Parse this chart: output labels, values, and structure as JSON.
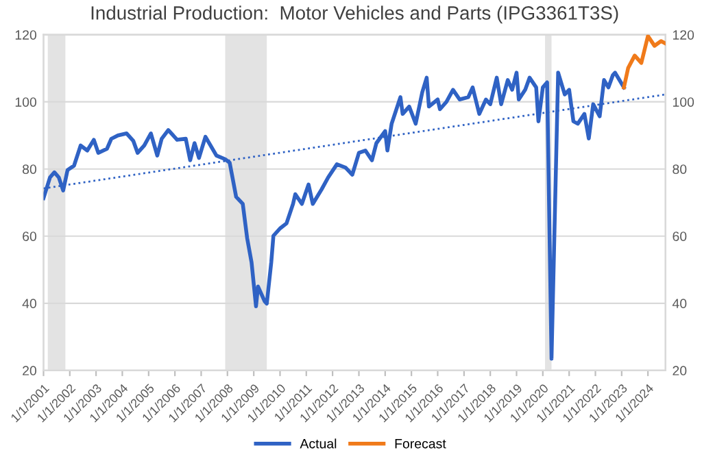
{
  "chart_data": {
    "type": "line",
    "title": "Industrial Production:  Motor Vehicles and Parts (IPG3361T3S)",
    "xlim": [
      "2001-01",
      "2024-09"
    ],
    "xticks": [
      {
        "value": "2001-01-01",
        "label": "1/1/2001"
      },
      {
        "value": "2002-01-01",
        "label": "1/1/2002"
      },
      {
        "value": "2003-01-01",
        "label": "1/1/2003"
      },
      {
        "value": "2004-01-01",
        "label": "1/1/2004"
      },
      {
        "value": "2005-01-01",
        "label": "1/1/2005"
      },
      {
        "value": "2006-01-01",
        "label": "1/1/2006"
      },
      {
        "value": "2007-01-01",
        "label": "1/1/2007"
      },
      {
        "value": "2008-01-01",
        "label": "1/1/2008"
      },
      {
        "value": "2009-01-01",
        "label": "1/1/2009"
      },
      {
        "value": "2010-01-01",
        "label": "1/1/2010"
      },
      {
        "value": "2011-01-01",
        "label": "1/1/2011"
      },
      {
        "value": "2012-01-01",
        "label": "1/1/2012"
      },
      {
        "value": "2013-01-01",
        "label": "1/1/2013"
      },
      {
        "value": "2014-01-01",
        "label": "1/1/2014"
      },
      {
        "value": "2015-01-01",
        "label": "1/1/2015"
      },
      {
        "value": "2016-01-01",
        "label": "1/1/2016"
      },
      {
        "value": "2017-01-01",
        "label": "1/1/2017"
      },
      {
        "value": "2018-01-01",
        "label": "1/1/2018"
      },
      {
        "value": "2019-01-01",
        "label": "1/1/2019"
      },
      {
        "value": "2020-01-01",
        "label": "1/1/2020"
      },
      {
        "value": "2021-01-01",
        "label": "1/1/2021"
      },
      {
        "value": "2022-01-01",
        "label": "1/1/2022"
      },
      {
        "value": "2023-01-01",
        "label": "1/1/2023"
      },
      {
        "value": "2024-01-01",
        "label": "1/1/2024"
      }
    ],
    "ylim": [
      20,
      120
    ],
    "yticks": [
      20,
      40,
      60,
      80,
      100,
      120
    ],
    "y2lim": [
      20,
      120
    ],
    "y2ticks": [
      20,
      40,
      60,
      80,
      100,
      120
    ],
    "grid": "y",
    "legend": "bottom",
    "bands": [
      {
        "axis": "x",
        "from": "2001-03",
        "to": "2001-11",
        "color": "#e3e3e3"
      },
      {
        "axis": "x",
        "from": "2007-12",
        "to": "2009-07",
        "color": "#e3e3e3"
      },
      {
        "axis": "x",
        "from": "2020-02",
        "to": "2020-05",
        "color": "#e3e3e3"
      }
    ],
    "series": [
      {
        "name": "Actual",
        "color": "#2f62c4",
        "x": [
          "2001-01",
          "2001-04",
          "2001-06",
          "2001-08",
          "2001-10",
          "2001-12",
          "2002-03",
          "2002-06",
          "2002-09",
          "2002-12",
          "2003-02",
          "2003-06",
          "2003-08",
          "2003-11",
          "2004-03",
          "2004-06",
          "2004-08",
          "2004-11",
          "2005-02",
          "2005-05",
          "2005-07",
          "2005-10",
          "2006-02",
          "2006-06",
          "2006-08",
          "2006-10",
          "2006-12",
          "2007-03",
          "2007-08",
          "2007-12",
          "2008-02",
          "2008-05",
          "2008-08",
          "2008-10",
          "2008-12",
          "2009-02",
          "2009-03",
          "2009-06",
          "2009-07",
          "2009-09",
          "2009-10",
          "2010-01",
          "2010-04",
          "2010-07",
          "2010-08",
          "2010-11",
          "2011-02",
          "2011-04",
          "2011-08",
          "2011-11",
          "2012-03",
          "2012-07",
          "2012-10",
          "2013-01",
          "2013-04",
          "2013-07",
          "2013-09",
          "2014-01",
          "2014-02",
          "2014-04",
          "2014-08",
          "2014-09",
          "2014-12",
          "2015-03",
          "2015-06",
          "2015-08",
          "2015-09",
          "2016-01",
          "2016-02",
          "2016-05",
          "2016-08",
          "2016-11",
          "2017-03",
          "2017-05",
          "2017-08",
          "2017-11",
          "2018-01",
          "2018-04",
          "2018-06",
          "2018-09",
          "2018-11",
          "2019-01",
          "2019-02",
          "2019-05",
          "2019-07",
          "2019-10",
          "2019-11",
          "2020-01",
          "2020-03",
          "2020-05",
          "2020-08",
          "2020-11",
          "2021-01",
          "2021-03",
          "2021-05",
          "2021-08",
          "2021-10",
          "2021-12",
          "2022-03",
          "2022-05",
          "2022-07",
          "2022-09",
          "2022-10",
          "2023-02"
        ],
        "values": [
          71.3,
          77.5,
          79,
          77.5,
          73.6,
          79.7,
          81,
          87,
          85.5,
          88.7,
          84.8,
          86,
          89,
          90,
          90.6,
          88.4,
          84.8,
          87,
          90.6,
          84,
          89,
          91.6,
          88.7,
          89,
          82.6,
          87.7,
          83.3,
          89.6,
          84,
          82.9,
          81.9,
          71.7,
          69.6,
          59.4,
          52.2,
          39.1,
          45,
          40.6,
          39.9,
          52.2,
          60.1,
          62.3,
          63.8,
          69.6,
          72.5,
          69.6,
          75.4,
          69.6,
          73.9,
          77.5,
          81.4,
          80.4,
          78.3,
          84.8,
          85.5,
          82.6,
          87.7,
          91.3,
          85.5,
          93.5,
          101.4,
          96.4,
          98.6,
          93.5,
          102.9,
          107.2,
          98.6,
          100.7,
          97.8,
          100,
          103.6,
          100.7,
          101.4,
          104.3,
          96.4,
          100.7,
          99.3,
          107.2,
          99.3,
          106.5,
          103.6,
          108.7,
          100.7,
          103.6,
          107.2,
          104.3,
          94.2,
          104.3,
          105.8,
          23.5,
          108.7,
          102.2,
          103.6,
          94.2,
          93.5,
          96.4,
          89.1,
          99.3,
          95.7,
          106.5,
          104.3,
          108,
          108.7,
          104.3
        ]
      },
      {
        "name": "Forecast",
        "color": "#f07a1a",
        "x": [
          "2023-02",
          "2023-04",
          "2023-07",
          "2023-10",
          "2024-01",
          "2024-04",
          "2024-07",
          "2024-09"
        ],
        "values": [
          104.3,
          110.1,
          113.8,
          111.6,
          119.6,
          116.7,
          118.1,
          117.4
        ]
      },
      {
        "color": "#2f62c4",
        "line_style": "dotted",
        "x": [
          "2001-01",
          "2024-09"
        ],
        "values": [
          74.2,
          102.2
        ]
      }
    ]
  }
}
